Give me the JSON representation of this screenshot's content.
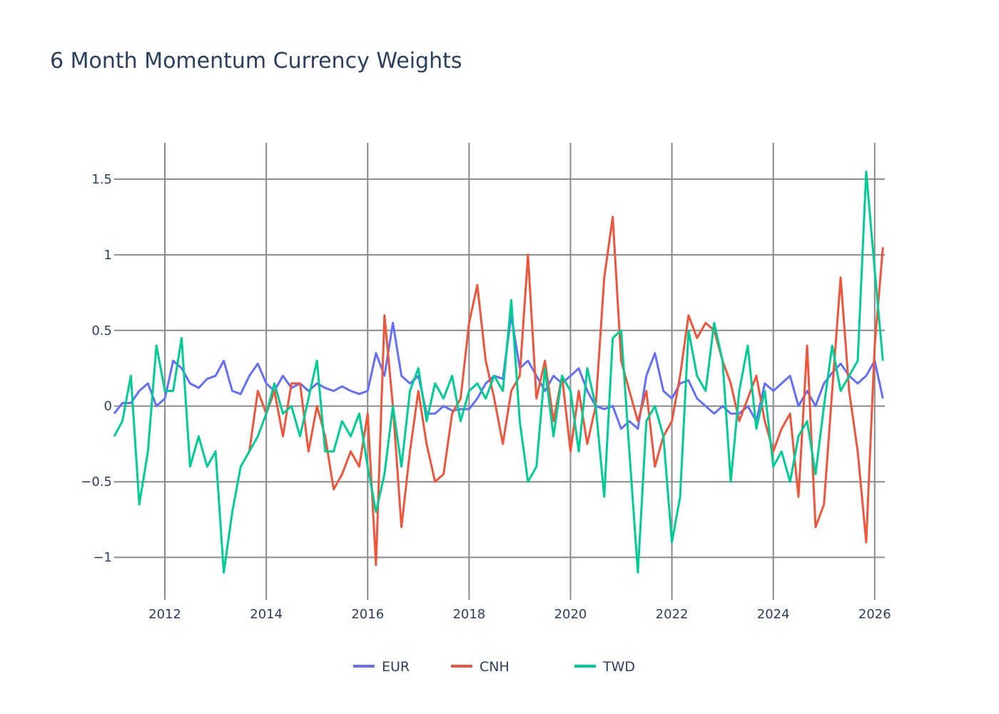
{
  "chart_data": {
    "type": "line",
    "title": "6 Month Momentum Currency Weights",
    "xlabel": "",
    "ylabel": "",
    "x_tick_labels": [
      "2012",
      "2014",
      "2016",
      "2018",
      "2020",
      "2022",
      "2024",
      "2026"
    ],
    "y_tick_labels": [
      "1.5",
      "1",
      "0.5",
      "0",
      "−0.5",
      "−1"
    ],
    "y_ticks": [
      1.5,
      1,
      0.5,
      0,
      -0.5,
      -1
    ],
    "ylim": [
      -1.28,
      1.74
    ],
    "xlim": [
      "2011-01-01",
      "2026-03-15"
    ],
    "grid": true,
    "legend_position": "bottom",
    "x": [
      "2011-01-01",
      "2011-03-01",
      "2011-05-01",
      "2011-07-01",
      "2011-09-01",
      "2011-11-01",
      "2012-01-01",
      "2012-03-01",
      "2012-05-01",
      "2012-07-01",
      "2012-09-01",
      "2012-11-01",
      "2013-01-01",
      "2013-03-01",
      "2013-05-01",
      "2013-07-01",
      "2013-09-01",
      "2013-11-01",
      "2014-01-01",
      "2014-03-01",
      "2014-05-01",
      "2014-07-01",
      "2014-09-01",
      "2014-11-01",
      "2015-01-01",
      "2015-03-01",
      "2015-05-01",
      "2015-07-01",
      "2015-09-01",
      "2015-11-01",
      "2016-01-01",
      "2016-03-01",
      "2016-05-01",
      "2016-07-01",
      "2016-09-01",
      "2016-11-01",
      "2017-01-01",
      "2017-03-01",
      "2017-05-01",
      "2017-07-01",
      "2017-09-01",
      "2017-11-01",
      "2018-01-01",
      "2018-03-01",
      "2018-05-01",
      "2018-07-01",
      "2018-09-01",
      "2018-11-01",
      "2019-01-01",
      "2019-03-01",
      "2019-05-01",
      "2019-07-01",
      "2019-09-01",
      "2019-11-01",
      "2020-01-01",
      "2020-03-01",
      "2020-05-01",
      "2020-07-01",
      "2020-09-01",
      "2020-11-01",
      "2021-01-01",
      "2021-03-01",
      "2021-05-01",
      "2021-07-01",
      "2021-09-01",
      "2021-11-01",
      "2022-01-01",
      "2022-03-01",
      "2022-05-01",
      "2022-07-01",
      "2022-09-01",
      "2022-11-01",
      "2023-01-01",
      "2023-03-01",
      "2023-05-01",
      "2023-07-01",
      "2023-09-01",
      "2023-11-01",
      "2024-01-01",
      "2024-03-01",
      "2024-05-01",
      "2024-07-01",
      "2024-09-01",
      "2024-11-01",
      "2025-01-01",
      "2025-03-01",
      "2025-05-01",
      "2025-07-01",
      "2025-09-01",
      "2025-11-01",
      "2026-01-01",
      "2026-03-01"
    ],
    "series": [
      {
        "name": "EUR",
        "color": "#636efa",
        "values": [
          -0.05,
          0.02,
          0.02,
          0.1,
          0.15,
          0.0,
          0.05,
          0.3,
          0.25,
          0.15,
          0.12,
          0.18,
          0.2,
          0.3,
          0.1,
          0.08,
          0.2,
          0.28,
          0.15,
          0.1,
          0.2,
          0.12,
          0.15,
          0.1,
          0.15,
          0.12,
          0.1,
          0.13,
          0.1,
          0.08,
          0.1,
          0.35,
          0.2,
          0.55,
          0.2,
          0.15,
          0.2,
          -0.05,
          -0.05,
          0.0,
          -0.03,
          -0.02,
          -0.02,
          0.05,
          0.15,
          0.2,
          0.18,
          0.6,
          0.25,
          0.3,
          0.2,
          0.1,
          0.2,
          0.15,
          0.2,
          0.25,
          0.1,
          0.0,
          -0.02,
          0.0,
          -0.15,
          -0.1,
          -0.15,
          0.2,
          0.35,
          0.1,
          0.05,
          0.15,
          0.17,
          0.05,
          0.0,
          -0.05,
          0.0,
          -0.05,
          -0.05,
          0.0,
          -0.1,
          0.15,
          0.1,
          0.15,
          0.2,
          0.0,
          0.1,
          0.0,
          0.15,
          0.22,
          0.28,
          0.2,
          0.15,
          0.2,
          0.3,
          0.05
        ]
      },
      {
        "name": "CNH",
        "color": "#ef553b",
        "values": [
          null,
          null,
          null,
          null,
          null,
          null,
          null,
          null,
          null,
          null,
          null,
          null,
          null,
          null,
          null,
          null,
          -0.3,
          0.1,
          -0.05,
          0.1,
          -0.2,
          0.15,
          0.15,
          -0.3,
          0.0,
          -0.2,
          -0.55,
          -0.45,
          -0.3,
          -0.4,
          -0.05,
          -1.05,
          0.6,
          0.0,
          -0.8,
          -0.3,
          0.1,
          -0.25,
          -0.5,
          -0.45,
          -0.05,
          0.05,
          0.55,
          0.8,
          0.3,
          0.05,
          -0.25,
          0.1,
          0.2,
          1.0,
          0.05,
          0.3,
          -0.1,
          0.2,
          -0.3,
          0.1,
          -0.25,
          0.0,
          0.85,
          1.25,
          0.3,
          0.1,
          -0.1,
          0.1,
          -0.4,
          -0.2,
          -0.1,
          0.2,
          0.6,
          0.45,
          0.55,
          0.5,
          0.3,
          0.15,
          -0.1,
          0.05,
          0.2,
          -0.1,
          -0.3,
          -0.15,
          -0.05,
          -0.6,
          0.4,
          -0.8,
          -0.65,
          0.1,
          0.85,
          0.1,
          -0.3,
          -0.9,
          0.4,
          1.05
        ]
      },
      {
        "name": "TWD",
        "color": "#00cc96",
        "values": [
          -0.2,
          -0.1,
          0.2,
          -0.65,
          -0.3,
          0.4,
          0.1,
          0.1,
          0.45,
          -0.4,
          -0.2,
          -0.4,
          -0.3,
          -1.1,
          -0.7,
          -0.4,
          -0.3,
          -0.2,
          -0.05,
          0.15,
          -0.05,
          0.0,
          -0.2,
          0.05,
          0.3,
          -0.3,
          -0.3,
          -0.1,
          -0.2,
          -0.05,
          -0.4,
          -0.7,
          -0.45,
          0.0,
          -0.4,
          0.1,
          0.25,
          -0.1,
          0.15,
          0.05,
          0.2,
          -0.1,
          0.1,
          0.15,
          0.05,
          0.2,
          0.1,
          0.7,
          -0.1,
          -0.5,
          -0.4,
          0.25,
          -0.2,
          0.2,
          0.1,
          -0.3,
          0.25,
          0.0,
          -0.6,
          0.45,
          0.5,
          -0.3,
          -1.1,
          -0.1,
          0.0,
          -0.2,
          -0.9,
          -0.6,
          0.5,
          0.2,
          0.1,
          0.55,
          0.3,
          -0.5,
          0.1,
          0.4,
          -0.15,
          0.1,
          -0.4,
          -0.3,
          -0.5,
          -0.2,
          -0.1,
          -0.45,
          0.0,
          0.4,
          0.1,
          0.2,
          0.3,
          1.55,
          0.9,
          0.3
        ]
      }
    ]
  }
}
